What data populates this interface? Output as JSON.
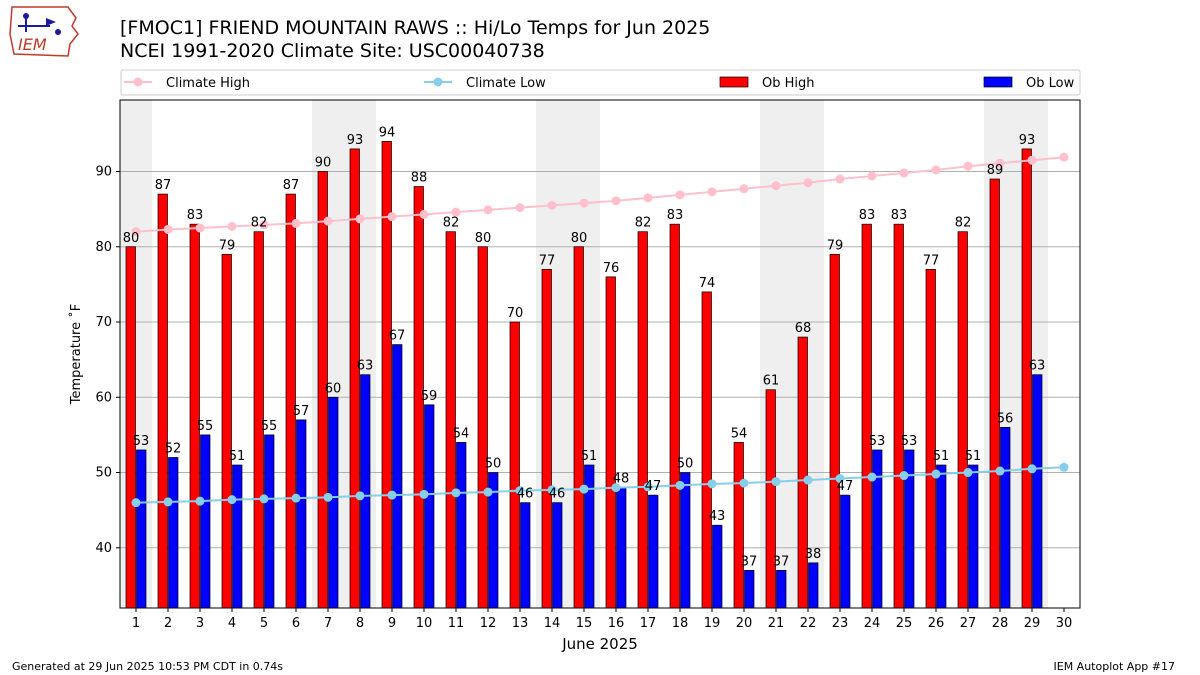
{
  "header": {
    "title_line1": "[FMOC1] FRIEND MOUNTAIN RAWS :: Hi/Lo Temps for Jun 2025",
    "title_line2": "NCEI 1991-2020 Climate Site: USC00040738",
    "logo_text": "IEM"
  },
  "footer": {
    "generated": "Generated at 29 Jun 2025 10:53 PM CDT in 0.74s",
    "app": "IEM Autoplot App #17"
  },
  "colors": {
    "ob_high": "#ff0000",
    "ob_low": "#0000ff",
    "climate_high": "#ffc0cb",
    "climate_low": "#87ceeb",
    "weekend_shade": "#efefef",
    "grid": "#b0b0b0"
  },
  "chart_data": {
    "type": "bar",
    "title": "[FMOC1] FRIEND MOUNTAIN RAWS :: Hi/Lo Temps for Jun 2025",
    "subtitle": "NCEI 1991-2020 Climate Site: USC00040738",
    "xlabel": "June 2025",
    "ylabel": "Temperature ˚F",
    "ylim": [
      32,
      99.5
    ],
    "yticks": [
      40,
      50,
      60,
      70,
      80,
      90
    ],
    "grid": "horizontal",
    "legend_position": "top",
    "categories": [
      1,
      2,
      3,
      4,
      5,
      6,
      7,
      8,
      9,
      10,
      11,
      12,
      13,
      14,
      15,
      16,
      17,
      18,
      19,
      20,
      21,
      22,
      23,
      24,
      25,
      26,
      27,
      28,
      29,
      30
    ],
    "shaded_days": [
      1,
      7,
      8,
      14,
      15,
      21,
      22,
      28,
      29
    ],
    "series": [
      {
        "name": "Climate High",
        "kind": "line",
        "values": [
          82.0,
          82.3,
          82.5,
          82.7,
          82.9,
          83.1,
          83.4,
          83.7,
          84.0,
          84.3,
          84.6,
          84.9,
          85.2,
          85.5,
          85.8,
          86.1,
          86.5,
          86.9,
          87.3,
          87.7,
          88.1,
          88.5,
          89.0,
          89.4,
          89.8,
          90.2,
          90.7,
          91.1,
          91.5,
          91.9
        ]
      },
      {
        "name": "Climate Low",
        "kind": "line",
        "values": [
          46.0,
          46.1,
          46.2,
          46.4,
          46.5,
          46.6,
          46.7,
          46.9,
          47.0,
          47.1,
          47.3,
          47.4,
          47.6,
          47.7,
          47.8,
          48.0,
          48.1,
          48.3,
          48.5,
          48.6,
          48.8,
          49.0,
          49.2,
          49.4,
          49.6,
          49.8,
          50.0,
          50.2,
          50.5,
          50.7
        ]
      },
      {
        "name": "Ob High",
        "kind": "bar",
        "values": [
          80,
          87,
          83,
          79,
          82,
          87,
          90,
          93,
          94,
          88,
          82,
          80,
          70,
          77,
          80,
          76,
          82,
          83,
          74,
          54,
          61,
          68,
          79,
          83,
          83,
          77,
          82,
          89,
          93,
          null
        ]
      },
      {
        "name": "Ob Low",
        "kind": "bar",
        "values": [
          53,
          52,
          55,
          51,
          55,
          57,
          60,
          63,
          67,
          59,
          54,
          50,
          46,
          46,
          51,
          48,
          47,
          50,
          43,
          37,
          37,
          38,
          47,
          53,
          53,
          51,
          51,
          56,
          63,
          null
        ]
      }
    ]
  }
}
